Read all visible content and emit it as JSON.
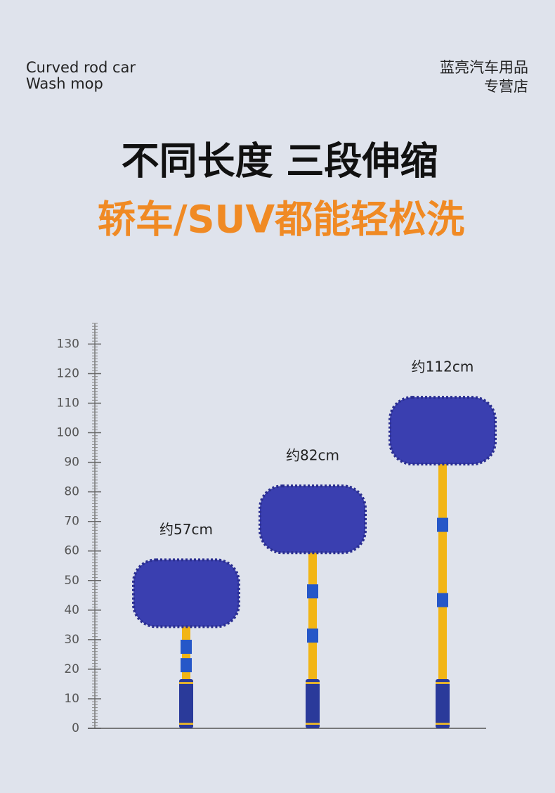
{
  "header": {
    "product_lines": [
      "Curved rod car",
      "Wash mop"
    ],
    "shop_lines": [
      "蓝亮汽车用品",
      "专营店"
    ]
  },
  "chart_data": {
    "type": "mop",
    "title": "不同长度 三段伸缩",
    "subtitle": "轿车/SUV都能轻松洗",
    "values": [
      57,
      82,
      112
    ],
    "value_labels": [
      "约57cm",
      "约82cm",
      "约112cm"
    ],
    "color": "#3a3fb0",
    "pole_color": "#f2b515",
    "ylim": [
      0,
      137
    ],
    "yticks": [
      0,
      10,
      20,
      30,
      40,
      50,
      60,
      70,
      80,
      90,
      100,
      110,
      120,
      130
    ]
  }
}
